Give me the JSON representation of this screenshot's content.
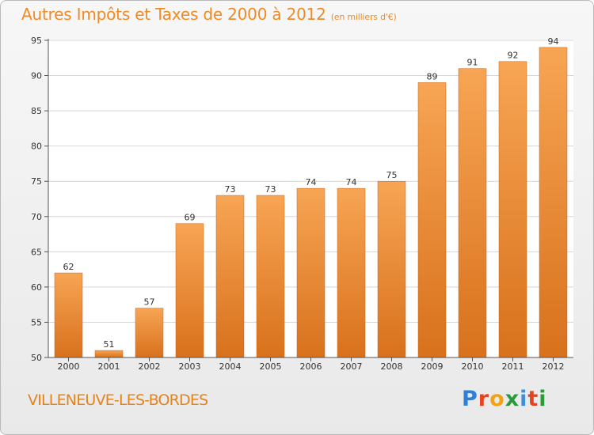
{
  "title": "Autres Impôts et Taxes de 2000 à 2012",
  "unit_label": "(en milliers d'€)",
  "commune": "VILLENEUVE-LES-BORDES",
  "logo": {
    "text": "Proxiti",
    "letters": [
      "P",
      "r",
      "o",
      "x",
      "i",
      "t",
      "i"
    ]
  },
  "colors": {
    "bar_top": "#f7a554",
    "bar_bottom": "#d8711c",
    "title": "#f08a24",
    "axis_text": "#333333",
    "grid": "#d6d6d6"
  },
  "chart_data": {
    "type": "bar",
    "categories": [
      "2000",
      "2001",
      "2002",
      "2003",
      "2004",
      "2005",
      "2006",
      "2007",
      "2008",
      "2009",
      "2010",
      "2011",
      "2012"
    ],
    "values": [
      62,
      51,
      57,
      69,
      73,
      73,
      74,
      74,
      75,
      89,
      91,
      92,
      94
    ],
    "data_labels": [
      "62",
      "51",
      "57",
      "69",
      "73",
      "73",
      "74",
      "74",
      "75",
      "89",
      "91",
      "92",
      "94"
    ],
    "ylim": [
      50,
      95
    ],
    "yticks": [
      "50",
      "55",
      "60",
      "65",
      "70",
      "75",
      "80",
      "85",
      "90",
      "95"
    ],
    "ytick_values": [
      50,
      55,
      60,
      65,
      70,
      75,
      80,
      85,
      90,
      95
    ],
    "grid": true,
    "legend": "none"
  }
}
